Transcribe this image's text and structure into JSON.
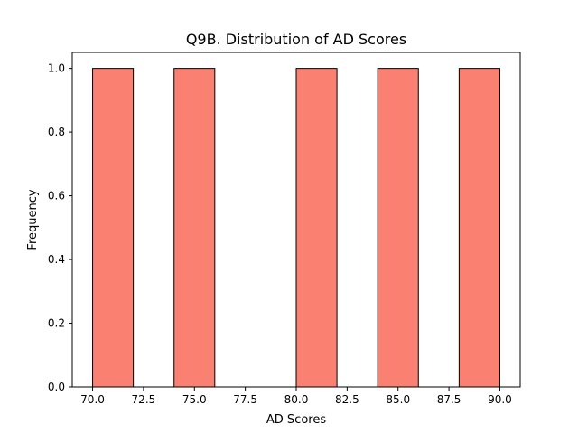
{
  "chart_data": {
    "type": "bar",
    "title": "Q9B. Distribution of AD Scores",
    "xlabel": "AD Scores",
    "ylabel": "Frequency",
    "xlim": [
      69,
      91
    ],
    "ylim": [
      0,
      1.05
    ],
    "grid": false,
    "legend": "none",
    "bins": [
      {
        "x0": 70,
        "x1": 72,
        "count": 1
      },
      {
        "x0": 72,
        "x1": 74,
        "count": 0
      },
      {
        "x0": 74,
        "x1": 76,
        "count": 1
      },
      {
        "x0": 76,
        "x1": 78,
        "count": 0
      },
      {
        "x0": 78,
        "x1": 80,
        "count": 0
      },
      {
        "x0": 80,
        "x1": 82,
        "count": 1
      },
      {
        "x0": 82,
        "x1": 84,
        "count": 0
      },
      {
        "x0": 84,
        "x1": 86,
        "count": 1
      },
      {
        "x0": 86,
        "x1": 88,
        "count": 0
      },
      {
        "x0": 88,
        "x1": 90,
        "count": 1
      }
    ],
    "x_ticks": [
      70.0,
      72.5,
      75.0,
      77.5,
      80.0,
      82.5,
      85.0,
      87.5,
      90.0
    ],
    "x_tick_labels": [
      "70.0",
      "72.5",
      "75.0",
      "77.5",
      "80.0",
      "82.5",
      "85.0",
      "87.5",
      "90.0"
    ],
    "y_ticks": [
      0.0,
      0.2,
      0.4,
      0.6,
      0.8,
      1.0
    ],
    "y_tick_labels": [
      "0.0",
      "0.2",
      "0.4",
      "0.6",
      "0.8",
      "1.0"
    ],
    "colors": {
      "bar_fill": "#fa8072",
      "bar_edge": "#000000",
      "axis": "#000000"
    }
  }
}
